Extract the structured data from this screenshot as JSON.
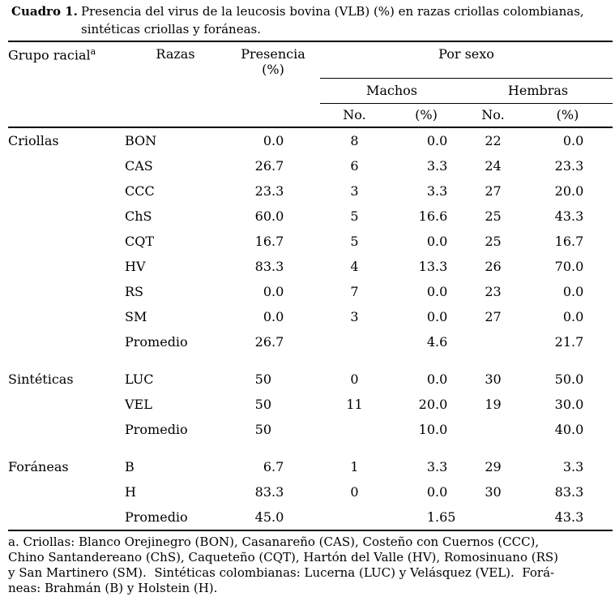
{
  "colors": {
    "text": "#000000",
    "background": "#ffffff"
  },
  "title": {
    "label": "Cuadro 1.",
    "line1": "Presencia del virus de la leucosis bovina (VLB) (%) en razas criollas colombianas,",
    "line2": "sintéticas criollas y foráneas."
  },
  "table": {
    "headers": {
      "grupo_racial": "Grupo racial",
      "grupo_racial_sup": "a",
      "razas": "Razas",
      "presencia_line1": "Presencia",
      "presencia_line2": "(%)",
      "por_sexo": "Por sexo",
      "machos": "Machos",
      "hembras": "Hembras",
      "no": "No.",
      "pct": "(%)"
    },
    "columns": [
      "Grupo racial",
      "Razas",
      "Presencia (%)",
      "Machos No.",
      "Machos (%)",
      "Hembras No.",
      "Hembras (%)"
    ],
    "groups": [
      {
        "name": "Criollas",
        "rows": [
          [
            "BON",
            "0.0",
            "8",
            "0.0",
            "22",
            "0.0"
          ],
          [
            "CAS",
            "26.7",
            "6",
            "3.3",
            "24",
            "23.3"
          ],
          [
            "CCC",
            "23.3",
            "3",
            "3.3",
            "27",
            "20.0"
          ],
          [
            "ChS",
            "60.0",
            "5",
            "16.6",
            "25",
            "43.3"
          ],
          [
            "CQT",
            "16.7",
            "5",
            "0.0",
            "25",
            "16.7"
          ],
          [
            "HV",
            "83.3",
            "4",
            "13.3",
            "26",
            "70.0"
          ],
          [
            "RS",
            "0.0",
            "7",
            "0.0",
            "23",
            "0.0"
          ],
          [
            "SM",
            "0.0",
            "3",
            "0.0",
            "27",
            "0.0"
          ],
          [
            "Promedio",
            "26.7",
            "",
            "4.6",
            "",
            "21.7"
          ]
        ]
      },
      {
        "name": "Sintéticas",
        "rows": [
          [
            "LUC",
            "50",
            "0",
            "0.0",
            "30",
            "50.0"
          ],
          [
            "VEL",
            "50",
            "11",
            "20.0",
            "19",
            "30.0"
          ],
          [
            "Promedio",
            "50",
            "",
            "10.0",
            "",
            "40.0"
          ]
        ]
      },
      {
        "name": "Foráneas",
        "rows": [
          [
            "B",
            "6.7",
            "1",
            "3.3",
            "29",
            "3.3"
          ],
          [
            "H",
            "83.3",
            "0",
            "0.0",
            "30",
            "83.3"
          ],
          [
            "Promedio",
            "45.0",
            "",
            "1.65",
            "",
            "43.3"
          ]
        ]
      }
    ]
  },
  "footnote": {
    "lines": [
      "a. Criollas: Blanco Orejinegro (BON), Casanareño (CAS), Costeño con Cuernos (CCC),",
      "Chino Santandereano (ChS), Caqueteño (CQT), Hartón del Valle (HV), Romosinuano (RS)",
      "y San Martinero (SM).  Sintéticas colombianas: Lucerna (LUC) y Velásquez (VEL).  Forá-",
      "neas: Brahmán (B) y Holstein (H)."
    ]
  }
}
